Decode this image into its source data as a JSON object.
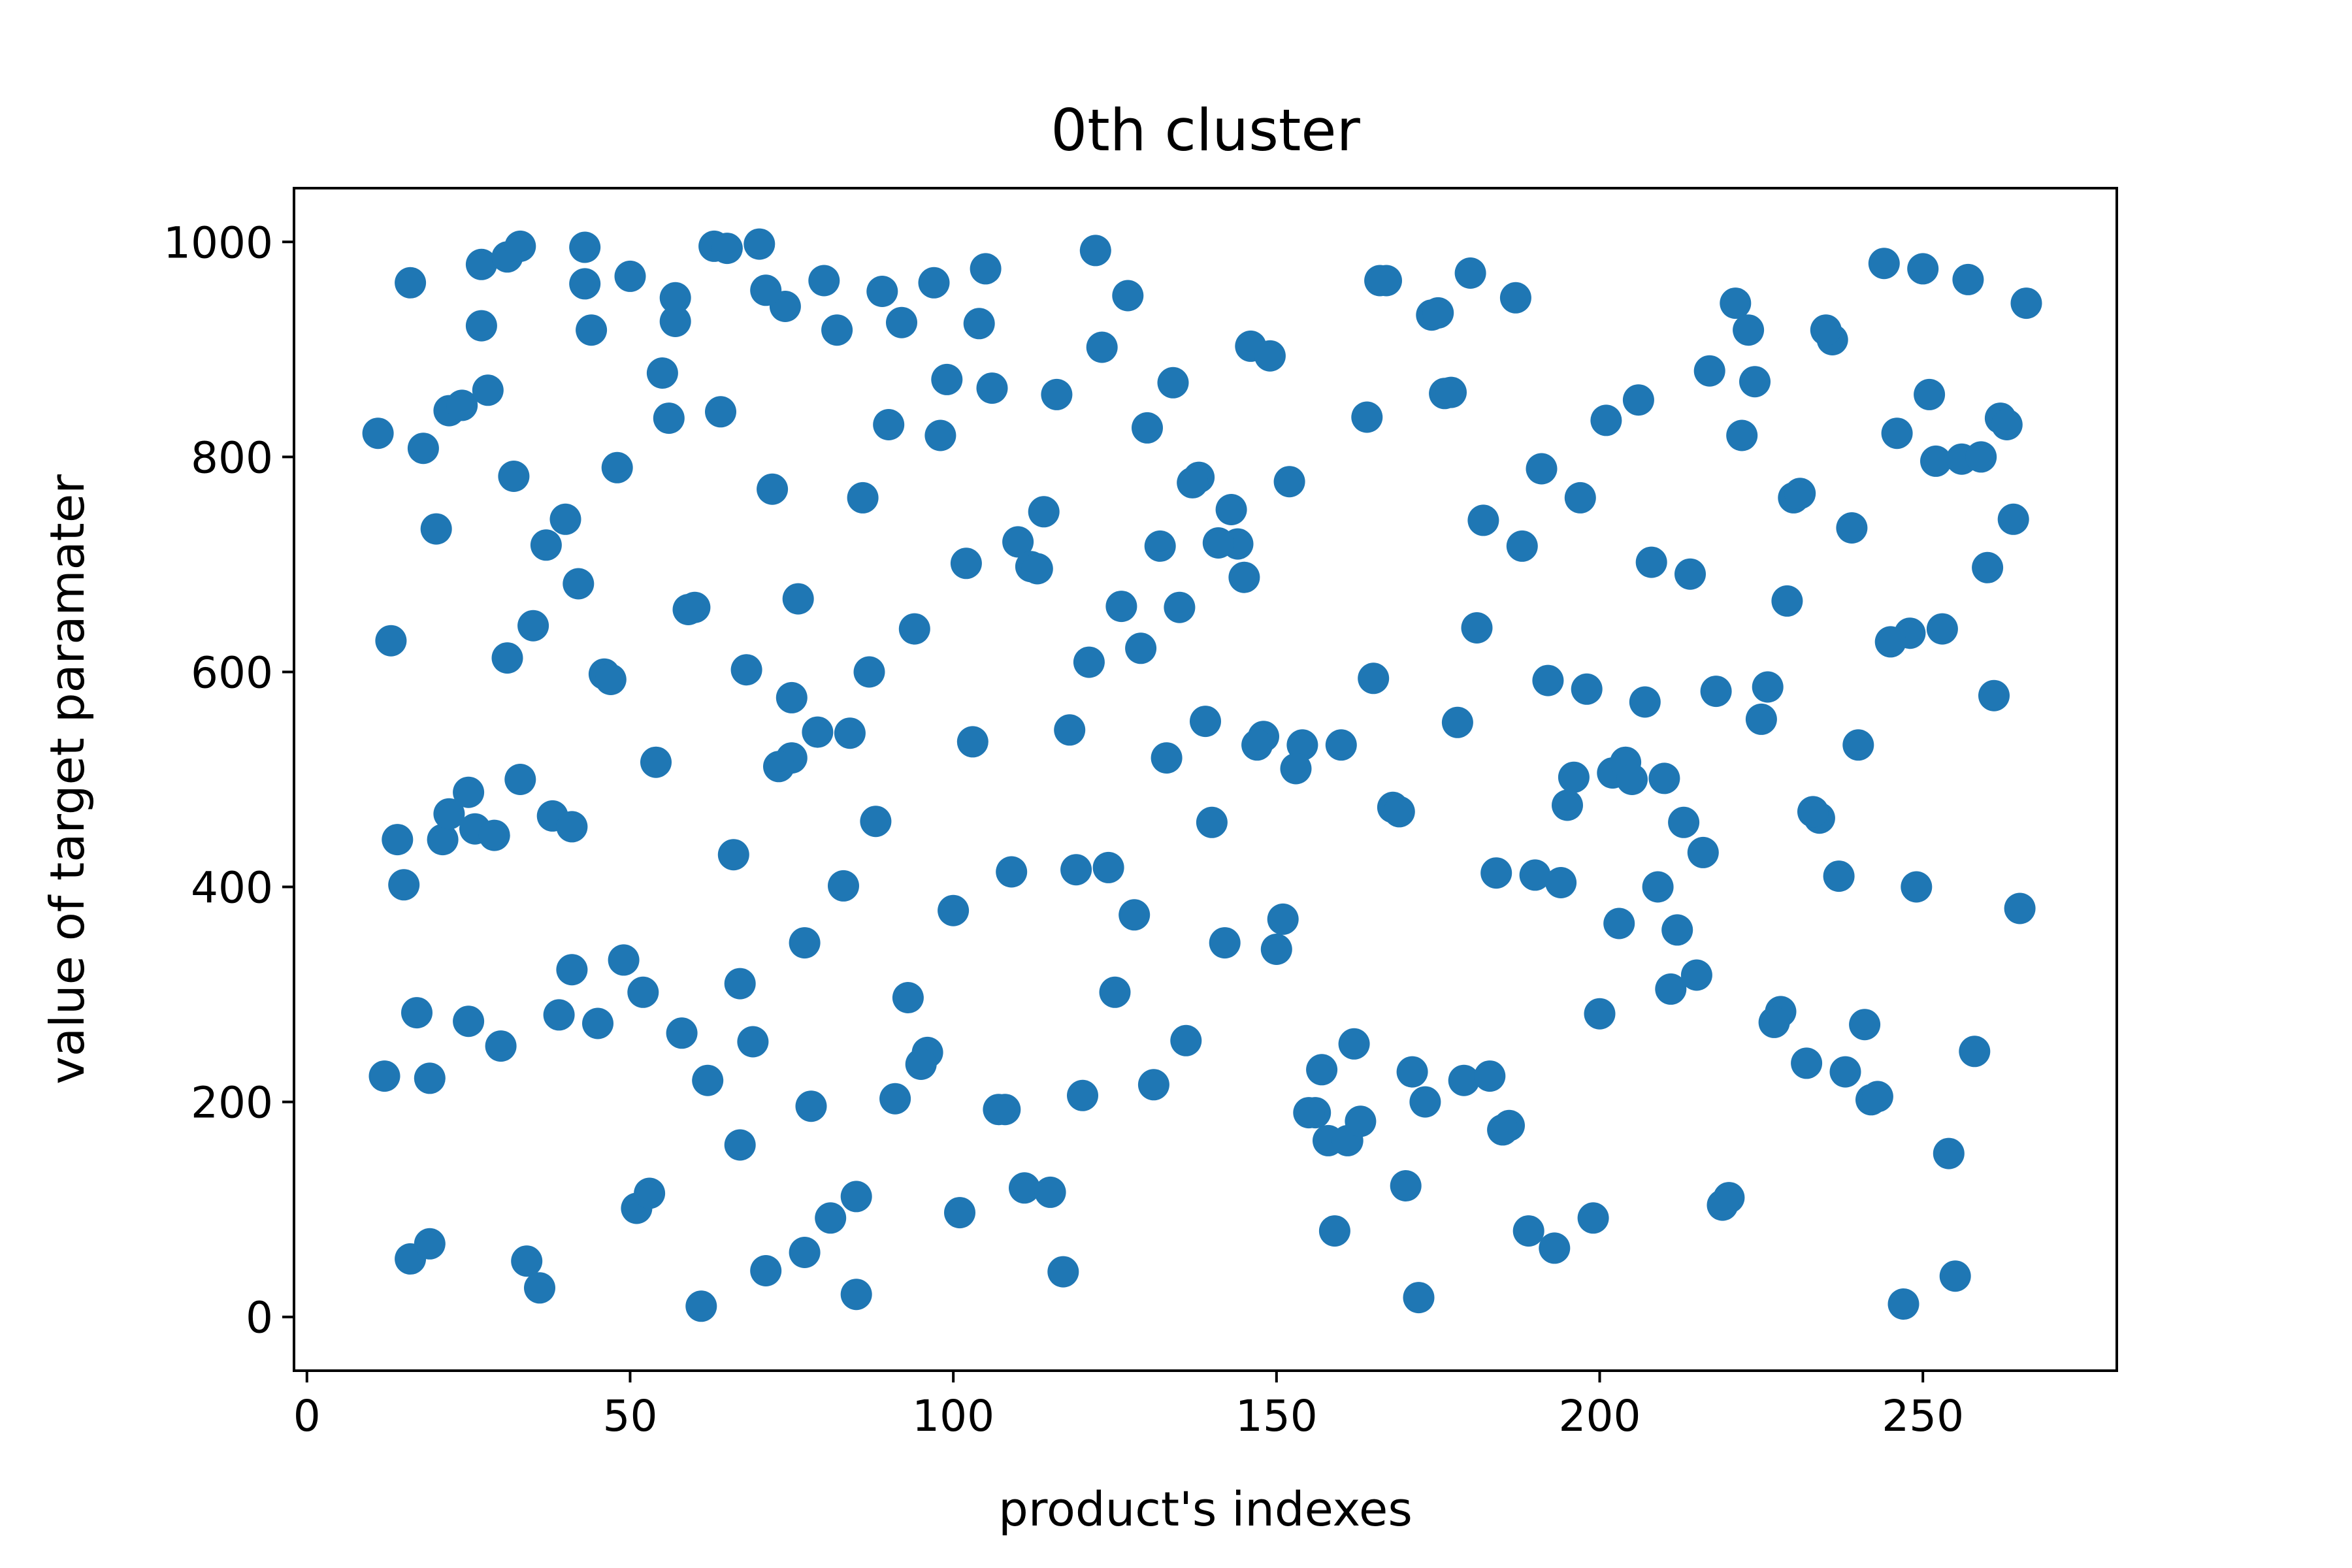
{
  "chart_data": {
    "type": "scatter",
    "title": "0th cluster",
    "xlabel": "product's indexes",
    "ylabel": "value of target paramater",
    "xlim": [
      -2,
      280
    ],
    "ylim": [
      -50,
      1050
    ],
    "xticks": [
      0,
      50,
      100,
      150,
      200,
      250
    ],
    "yticks": [
      0,
      200,
      400,
      600,
      800,
      1000
    ],
    "grid": false,
    "legend": "none",
    "marker_color": "#1f77b4",
    "series": [
      {
        "x": [
          11,
          13,
          14,
          15,
          16,
          17,
          18,
          19,
          20,
          21,
          22,
          24,
          25,
          26,
          27,
          28,
          29,
          31,
          32,
          33,
          35,
          37,
          38,
          40,
          41,
          42,
          43,
          45,
          46,
          48,
          50,
          52,
          54,
          56,
          57,
          58,
          60,
          63,
          64,
          66,
          67,
          68,
          70,
          71,
          72,
          74,
          75,
          76,
          77,
          78,
          80,
          82,
          84,
          85,
          86,
          88,
          90,
          92,
          94,
          96,
          98,
          100,
          102,
          104,
          106,
          108,
          110,
          112,
          114,
          116,
          118,
          120,
          122,
          124,
          126,
          128,
          130,
          132,
          134,
          136,
          138,
          140,
          142,
          144,
          146,
          148,
          150,
          152,
          154,
          156,
          158,
          160,
          162,
          164,
          166,
          168,
          170,
          172,
          174,
          176,
          178,
          180,
          182,
          184,
          186,
          188,
          190,
          192,
          194,
          196,
          198,
          200,
          202,
          204,
          206,
          208,
          210,
          212,
          214,
          216,
          218,
          220,
          222,
          224,
          226,
          228,
          230,
          232,
          234,
          236,
          238,
          240,
          242,
          244,
          246,
          248,
          250,
          252,
          254,
          256,
          258,
          260,
          262,
          264,
          266
        ],
        "y": [
          822,
          629,
          444,
          402,
          962,
          283,
          808,
          222,
          733,
          444,
          843,
          848,
          275,
          454,
          922,
          862,
          448,
          613,
          782,
          500,
          643,
          718,
          466,
          742,
          323,
          682,
          961,
          273,
          598,
          790,
          968,
          302,
          516,
          836,
          948,
          264,
          660,
          996,
          842,
          430,
          160,
          602,
          998,
          43,
          770,
          940,
          520,
          668,
          348,
          196,
          964,
          918,
          543,
          112,
          762,
          461,
          830,
          925,
          640,
          246,
          820,
          378,
          701,
          924,
          864,
          193,
          721,
          698,
          749,
          858,
          546,
          206,
          992,
          418,
          661,
          374,
          827,
          717,
          869,
          257,
          781,
          460,
          348,
          719,
          903,
          540,
          342,
          777,
          532,
          190,
          164,
          532,
          254,
          837,
          964,
          474,
          122,
          18,
          932,
          859,
          553,
          971,
          741,
          413,
          178,
          717,
          411,
          592,
          404,
          502,
          584,
          282,
          506,
          516,
          853,
          702,
          501,
          360,
          691,
          432,
          582,
          111,
          820,
          870,
          586,
          284,
          762,
          236,
          464,
          909,
          228,
          532,
          202,
          980,
          822,
          636,
          975,
          796,
          152,
          798,
          247,
          697,
          836,
          742,
          943
        ]
      },
      {
        "x": [
          12,
          16,
          19,
          22,
          25,
          27,
          30,
          31,
          33,
          34,
          36,
          39,
          41,
          43,
          44,
          47,
          49,
          51,
          53,
          55,
          57,
          59,
          61,
          62,
          65,
          67,
          69,
          71,
          73,
          75,
          77,
          79,
          81,
          83,
          85,
          87,
          89,
          91,
          93,
          95,
          97,
          99,
          101,
          103,
          105,
          107,
          109,
          111,
          113,
          115,
          117,
          119,
          121,
          123,
          125,
          127,
          129,
          131,
          133,
          135,
          137,
          139,
          141,
          143,
          145,
          147,
          149,
          151,
          153,
          155,
          157,
          159,
          161,
          163,
          165,
          167,
          169,
          171,
          173,
          175,
          177,
          179,
          181,
          183,
          185,
          187,
          189,
          191,
          193,
          195,
          197,
          199,
          201,
          203,
          205,
          207,
          209,
          211,
          213,
          215,
          217,
          219,
          221,
          223,
          225,
          227,
          229,
          231,
          233,
          235,
          237,
          239,
          241,
          243,
          245,
          247,
          249,
          251,
          253,
          255,
          257,
          259,
          261,
          263,
          265
        ],
        "y": [
          224,
          54,
          68,
          468,
          488,
          979,
          252,
          986,
          996,
          52,
          27,
          281,
          456,
          995,
          918,
          593,
          332,
          101,
          115,
          878,
          926,
          658,
          10,
          220,
          994,
          310,
          256,
          955,
          512,
          576,
          60,
          544,
          92,
          401,
          21,
          600,
          954,
          203,
          297,
          235,
          962,
          872,
          97,
          535,
          975,
          193,
          414,
          120,
          696,
          116,
          42,
          416,
          609,
          902,
          302,
          950,
          622,
          216,
          520,
          660,
          776,
          554,
          720,
          751,
          688,
          532,
          894,
          370,
          510,
          190,
          230,
          80,
          164,
          182,
          594,
          964,
          470,
          228,
          200,
          934,
          860,
          220,
          641,
          224,
          174,
          948,
          80,
          789,
          64,
          476,
          762,
          92,
          834,
          366,
          500,
          572,
          400,
          305,
          460,
          318,
          880,
          104,
          943,
          918,
          556,
          274,
          666,
          766,
          470,
          918,
          410,
          734,
          272,
          205,
          628,
          12,
          400,
          858,
          640,
          38,
          965,
          800,
          578,
          830,
          380
        ]
      }
    ]
  }
}
